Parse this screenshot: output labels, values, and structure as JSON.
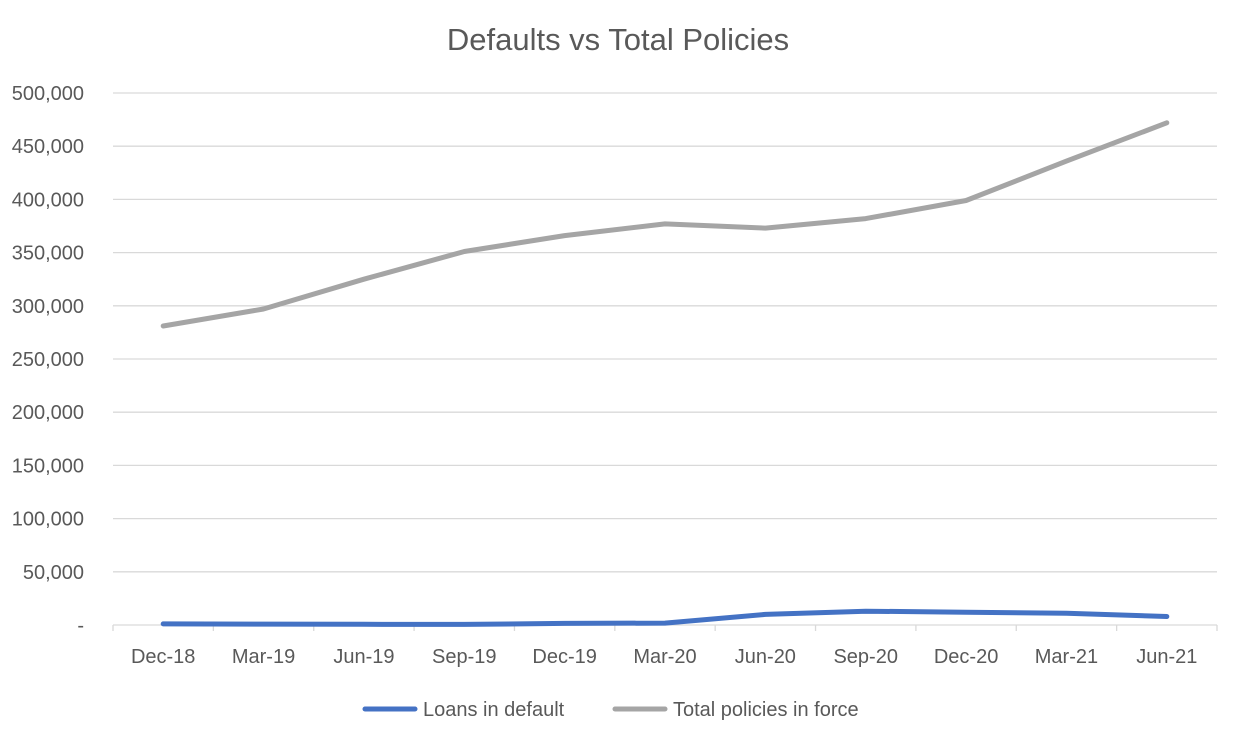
{
  "chart_data": {
    "type": "line",
    "title": "Defaults vs Total Policies",
    "xlabel": "",
    "ylabel": "",
    "categories": [
      "Dec-18",
      "Mar-19",
      "Jun-19",
      "Sep-19",
      "Dec-19",
      "Mar-20",
      "Jun-20",
      "Sep-20",
      "Dec-20",
      "Mar-21",
      "Jun-21"
    ],
    "y_tick_labels": [
      "-",
      "50,000",
      "100,000",
      "150,000",
      "200,000",
      "250,000",
      "300,000",
      "350,000",
      "400,000",
      "450,000",
      "500,000"
    ],
    "ylim": [
      0,
      500000
    ],
    "y_step": 50000,
    "grid": true,
    "legend_position": "bottom",
    "series": [
      {
        "name": "Loans in default",
        "color": "#4472c4",
        "values": [
          1000,
          800,
          700,
          600,
          1500,
          1800,
          10000,
          13000,
          12000,
          11000,
          8000
        ]
      },
      {
        "name": "Total policies in force",
        "color": "#a5a5a5",
        "values": [
          281000,
          297000,
          325000,
          351000,
          366000,
          377000,
          373000,
          382000,
          399000,
          436000,
          472000
        ]
      }
    ]
  }
}
